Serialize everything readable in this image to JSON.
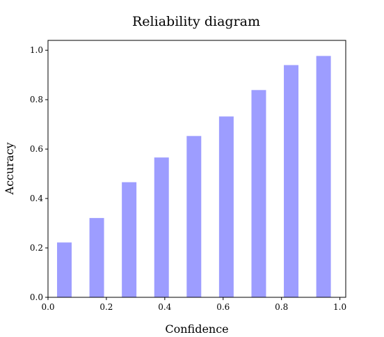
{
  "chart_data": {
    "type": "bar",
    "title": "Reliability diagram",
    "xlabel": "Confidence",
    "ylabel": "Accuracy",
    "x": [
      0.056,
      0.167,
      0.278,
      0.389,
      0.5,
      0.611,
      0.722,
      0.833,
      0.944
    ],
    "values": [
      0.222,
      0.321,
      0.466,
      0.566,
      0.653,
      0.732,
      0.839,
      0.94,
      0.977
    ],
    "bar_width": 0.05,
    "xlim": [
      0.0,
      1.02
    ],
    "ylim": [
      0.0,
      1.04
    ],
    "xticks": [
      "0.0",
      "0.2",
      "0.4",
      "0.6",
      "0.8",
      "1.0"
    ],
    "yticks": [
      "0.0",
      "0.2",
      "0.4",
      "0.6",
      "0.8",
      "1.0"
    ],
    "grid": false,
    "legend": "none",
    "bar_color": "#9d9dff"
  }
}
